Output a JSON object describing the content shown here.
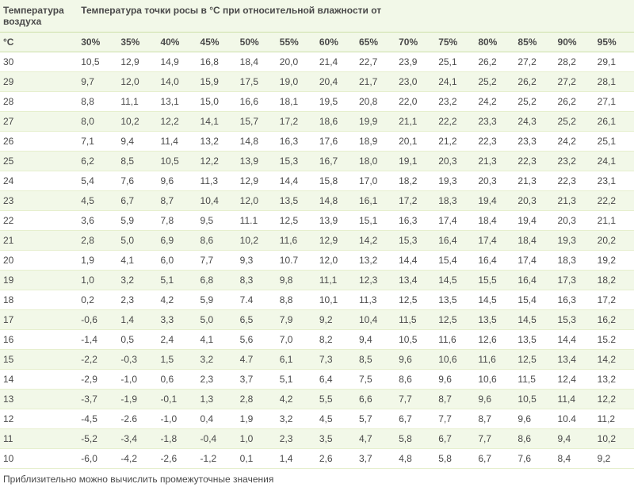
{
  "header": {
    "left_col_top": "Температура воздуха",
    "right_span_top": "Температура точки росы в °C при относительной влажности от",
    "left_col_bottom": "°C",
    "humidity_cols": [
      "30%",
      "35%",
      "40%",
      "45%",
      "50%",
      "55%",
      "60%",
      "65%",
      "70%",
      "75%",
      "80%",
      "85%",
      "90%",
      "95%"
    ]
  },
  "footer_note": "Приблизительно можно вычислить промежуточные значения",
  "rows": [
    {
      "t": "30",
      "v": [
        "10,5",
        "12,9",
        "14,9",
        "16,8",
        "18,4",
        "20,0",
        "21,4",
        "22,7",
        "23,9",
        "25,1",
        "26,2",
        "27,2",
        "28,2",
        "29,1"
      ]
    },
    {
      "t": "29",
      "v": [
        "9,7",
        "12,0",
        "14,0",
        "15,9",
        "17,5",
        "19,0",
        "20,4",
        "21,7",
        "23,0",
        "24,1",
        "25,2",
        "26,2",
        "27,2",
        "28,1"
      ]
    },
    {
      "t": "28",
      "v": [
        "8,8",
        "11,1",
        "13,1",
        "15,0",
        "16,6",
        "18,1",
        "19,5",
        "20,8",
        "22,0",
        "23,2",
        "24,2",
        "25,2",
        "26,2",
        "27,1"
      ]
    },
    {
      "t": "27",
      "v": [
        "8,0",
        "10,2",
        "12,2",
        "14,1",
        "15,7",
        "17,2",
        "18,6",
        "19,9",
        "21,1",
        "22,2",
        "23,3",
        "24,3",
        "25,2",
        "26,1"
      ]
    },
    {
      "t": "26",
      "v": [
        "7,1",
        "9,4",
        "11,4",
        "13,2",
        "14,8",
        "16,3",
        "17,6",
        "18,9",
        "20,1",
        "21,2",
        "22,3",
        "23,3",
        "24,2",
        "25,1"
      ]
    },
    {
      "t": "25",
      "v": [
        "6,2",
        "8,5",
        "10,5",
        "12,2",
        "13,9",
        "15,3",
        "16,7",
        "18,0",
        "19,1",
        "20,3",
        "21,3",
        "22,3",
        "23,2",
        "24,1"
      ]
    },
    {
      "t": "24",
      "v": [
        "5,4",
        "7,6",
        "9,6",
        "11,3",
        "12,9",
        "14,4",
        "15,8",
        "17,0",
        "18,2",
        "19,3",
        "20,3",
        "21,3",
        "22,3",
        "23,1"
      ]
    },
    {
      "t": "23",
      "v": [
        "4,5",
        "6,7",
        "8,7",
        "10,4",
        "12,0",
        "13,5",
        "14,8",
        "16,1",
        "17,2",
        "18,3",
        "19,4",
        "20,3",
        "21,3",
        "22,2"
      ]
    },
    {
      "t": "22",
      "v": [
        "3,6",
        "5,9",
        "7,8",
        "9,5",
        "11.1",
        "12,5",
        "13,9",
        "15,1",
        "16,3",
        "17,4",
        "18,4",
        "19,4",
        "20,3",
        "21,1"
      ]
    },
    {
      "t": "21",
      "v": [
        "2,8",
        "5,0",
        "6,9",
        "8,6",
        "10,2",
        "11,6",
        "12,9",
        "14,2",
        "15,3",
        "16,4",
        "17,4",
        "18,4",
        "19,3",
        "20,2"
      ]
    },
    {
      "t": "20",
      "v": [
        "1,9",
        "4,1",
        "6,0",
        "7,7",
        "9,3",
        "10.7",
        "12,0",
        "13,2",
        "14,4",
        "15,4",
        "16,4",
        "17,4",
        "18,3",
        "19,2"
      ]
    },
    {
      "t": "19",
      "v": [
        "1,0",
        "3,2",
        "5,1",
        "6,8",
        "8,3",
        "9,8",
        "11,1",
        "12,3",
        "13,4",
        "14,5",
        "15,5",
        "16,4",
        "17,3",
        "18,2"
      ]
    },
    {
      "t": "18",
      "v": [
        "0,2",
        "2,3",
        "4,2",
        "5,9",
        "7.4",
        "8,8",
        "10,1",
        "11,3",
        "12,5",
        "13,5",
        "14,5",
        "15,4",
        "16,3",
        "17,2"
      ]
    },
    {
      "t": "17",
      "v": [
        "-0,6",
        "1,4",
        "3,3",
        "5,0",
        "6,5",
        "7,9",
        "9,2",
        "10,4",
        "11,5",
        "12,5",
        "13,5",
        "14,5",
        "15,3",
        "16,2"
      ]
    },
    {
      "t": "16",
      "v": [
        "-1,4",
        "0,5",
        "2,4",
        "4,1",
        "5,6",
        "7,0",
        "8,2",
        "9,4",
        "10,5",
        "11,6",
        "12,6",
        "13,5",
        "14,4",
        "15.2"
      ]
    },
    {
      "t": "15",
      "v": [
        "-2,2",
        "-0,3",
        "1,5",
        "3,2",
        "4.7",
        "6,1",
        "7,3",
        "8,5",
        "9,6",
        "10,6",
        "11,6",
        "12,5",
        "13,4",
        "14,2"
      ]
    },
    {
      "t": "14",
      "v": [
        "-2,9",
        "-1,0",
        "0,6",
        "2,3",
        "3,7",
        "5,1",
        "6,4",
        "7,5",
        "8,6",
        "9,6",
        "10,6",
        "11,5",
        "12,4",
        "13,2"
      ]
    },
    {
      "t": "13",
      "v": [
        "-3,7",
        "-1,9",
        "-0,1",
        "1,3",
        "2,8",
        "4,2",
        "5,5",
        "6,6",
        "7,7",
        "8,7",
        "9,6",
        "10,5",
        "11,4",
        "12,2"
      ]
    },
    {
      "t": "12",
      "v": [
        "-4,5",
        "-2.6",
        "-1,0",
        "0,4",
        "1,9",
        "3,2",
        "4,5",
        "5,7",
        "6,7",
        "7,7",
        "8,7",
        "9,6",
        "10.4",
        "11,2"
      ]
    },
    {
      "t": "11",
      "v": [
        "-5,2",
        "-3,4",
        "-1,8",
        "-0,4",
        "1,0",
        "2,3",
        "3,5",
        "4,7",
        "5,8",
        "6,7",
        "7,7",
        "8,6",
        "9,4",
        "10,2"
      ]
    },
    {
      "t": "10",
      "v": [
        "-6,0",
        "-4,2",
        "-2,6",
        "-1,2",
        "0,1",
        "1,4",
        "2,6",
        "3,7",
        "4,8",
        "5,8",
        "6,7",
        "7,6",
        "8,4",
        "9,2"
      ]
    }
  ]
}
